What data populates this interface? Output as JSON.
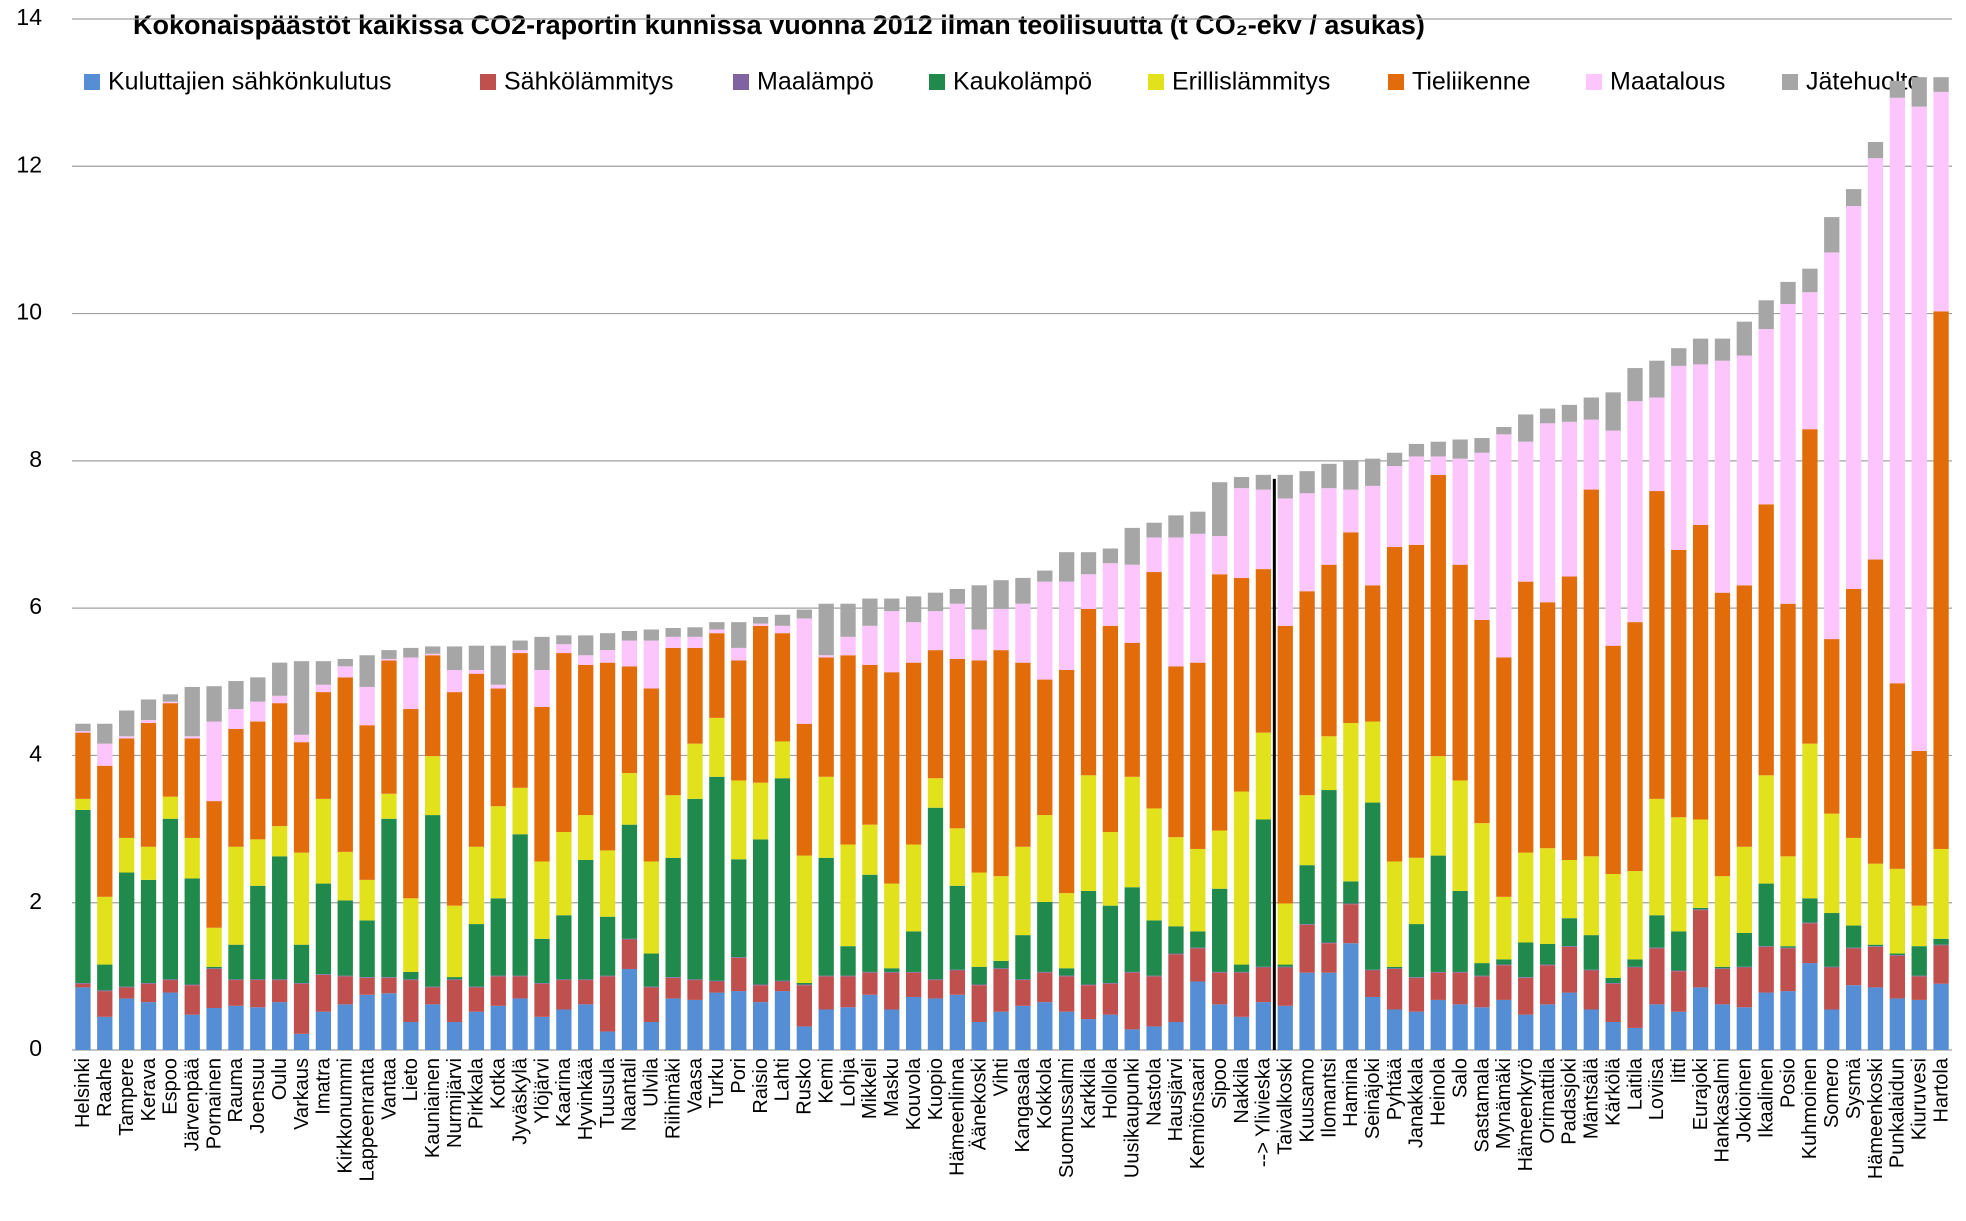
{
  "chart_data": {
    "type": "stacked-bar",
    "title": "Kokonaispäästöt kaikissa CO2-raportin kunnissa vuonna 2012 ilman teollisuutta (t CO₂-ekv / asukas)",
    "categories": [
      "Helsinki",
      "Raahe",
      "Tampere",
      "Kerava",
      "Espoo",
      "Järvenpää",
      "Pornainen",
      "Rauma",
      "Joensuu",
      "Oulu",
      "Varkaus",
      "Imatra",
      "Kirkkonummi",
      "Lappeenranta",
      "Vantaa",
      "Lieto",
      "Kauniainen",
      "Nurmijärvi",
      "Pirkkala",
      "Kotka",
      "Jyväskylä",
      "Ylöjärvi",
      "Kaarina",
      "Hyvinkää",
      "Tuusula",
      "Naantali",
      "Ulvila",
      "Riihimäki",
      "Vaasa",
      "Turku",
      "Pori",
      "Raisio",
      "Lahti",
      "Rusko",
      "Kemi",
      "Lohja",
      "Mikkeli",
      "Masku",
      "Kouvola",
      "Kuopio",
      "Hämeenlinna",
      "Äänekoski",
      "Vihti",
      "Kangasala",
      "Kokkola",
      "Suomussalmi",
      "Karkkila",
      "Hollola",
      "Uusikaupunki",
      "Nastola",
      "Hausjärvi",
      "Kemiönsaari",
      "Sipoo",
      "Nakkila",
      "--> Ylivieska",
      "Taivalkoski",
      "Kuusamo",
      "Ilomantsi",
      "Hamina",
      "Seinäjoki",
      "Pyhtää",
      "Janakkala",
      "Heinola",
      "Salo",
      "Sastamala",
      "Mynämäki",
      "Hämeenkyrö",
      "Orimattila",
      "Padasjoki",
      "Mäntsälä",
      "Kärkölä",
      "Laitila",
      "Loviisa",
      "Iitti",
      "Eurajoki",
      "Hankasalmi",
      "Jokioinen",
      "Ikaalinen",
      "Posio",
      "Kuhmoinen",
      "Somero",
      "Sysmä",
      "Hämeenkoski",
      "Punkalaidun",
      "Kiuruvesi",
      "Hartola"
    ],
    "series": [
      {
        "name": "Kuluttajien sähkönkulutus",
        "color": "#558ed5",
        "values": [
          0.85,
          0.45,
          0.7,
          0.65,
          0.78,
          0.48,
          0.57,
          0.6,
          0.58,
          0.65,
          0.22,
          0.52,
          0.62,
          0.75,
          0.77,
          0.38,
          0.62,
          0.38,
          0.52,
          0.6,
          0.7,
          0.45,
          0.55,
          0.62,
          0.25,
          1.1,
          0.38,
          0.7,
          0.68,
          0.78,
          0.8,
          0.65,
          0.8,
          0.32,
          0.55,
          0.58,
          0.75,
          0.55,
          0.72,
          0.7,
          0.75,
          0.38,
          0.52,
          0.6,
          0.65,
          0.52,
          0.42,
          0.48,
          0.28,
          0.32,
          0.38,
          0.93,
          0.62,
          0.45,
          0.65,
          0.6,
          1.05,
          1.05,
          1.45,
          0.72,
          0.55,
          0.52,
          0.68,
          0.62,
          0.58,
          0.68,
          0.48,
          0.62,
          0.78,
          0.55,
          0.38,
          0.3,
          0.62,
          0.52,
          0.85,
          0.62,
          0.58,
          0.78,
          0.8,
          1.18,
          0.55,
          0.88,
          0.85,
          0.7,
          0.68,
          0.9
        ]
      },
      {
        "name": "Sähkölämmitys",
        "color": "#c0504d",
        "values": [
          0.05,
          0.35,
          0.15,
          0.25,
          0.17,
          0.4,
          0.53,
          0.35,
          0.37,
          0.3,
          0.68,
          0.5,
          0.38,
          0.23,
          0.21,
          0.57,
          0.23,
          0.57,
          0.33,
          0.4,
          0.3,
          0.45,
          0.4,
          0.33,
          0.75,
          0.4,
          0.47,
          0.28,
          0.27,
          0.15,
          0.45,
          0.23,
          0.13,
          0.56,
          0.45,
          0.42,
          0.3,
          0.5,
          0.33,
          0.25,
          0.33,
          0.5,
          0.58,
          0.35,
          0.4,
          0.48,
          0.46,
          0.42,
          0.77,
          0.68,
          0.92,
          0.45,
          0.43,
          0.6,
          0.47,
          0.52,
          0.65,
          0.4,
          0.53,
          0.36,
          0.55,
          0.46,
          0.37,
          0.43,
          0.42,
          0.47,
          0.5,
          0.53,
          0.62,
          0.53,
          0.52,
          0.82,
          0.76,
          0.55,
          1.05,
          0.48,
          0.54,
          0.62,
          0.58,
          0.54,
          0.57,
          0.5,
          0.55,
          0.58,
          0.32,
          0.52
        ]
      },
      {
        "name": "Maalämpö",
        "color": "#8064a2",
        "values": [
          0.01,
          0.01,
          0.01,
          0.01,
          0.01,
          0.01,
          0.01,
          0.01,
          0.01,
          0.01,
          0.01,
          0.01,
          0.01,
          0.01,
          0.01,
          0.01,
          0.01,
          0.01,
          0.01,
          0.01,
          0.01,
          0.01,
          0.01,
          0.01,
          0.01,
          0.01,
          0.01,
          0.01,
          0.01,
          0.01,
          0.01,
          0.01,
          0.01,
          0.01,
          0.01,
          0.01,
          0.01,
          0.01,
          0.01,
          0.01,
          0.01,
          0.01,
          0.01,
          0.01,
          0.01,
          0.01,
          0.01,
          0.01,
          0.01,
          0.01,
          0.01,
          0.01,
          0.01,
          0.01,
          0.01,
          0.01,
          0.01,
          0.01,
          0.01,
          0.01,
          0.01,
          0.01,
          0.01,
          0.01,
          0.01,
          0.01,
          0.01,
          0.01,
          0.01,
          0.01,
          0.01,
          0.01,
          0.01,
          0.01,
          0.01,
          0.01,
          0.01,
          0.01,
          0.01,
          0.01,
          0.01,
          0.01,
          0.01,
          0.01,
          0.01,
          0.01
        ]
      },
      {
        "name": "Kaukolämpö",
        "color": "#1f8a4c",
        "values": [
          2.35,
          0.35,
          1.55,
          1.4,
          2.18,
          1.44,
          0.02,
          0.47,
          1.27,
          1.67,
          0.52,
          1.23,
          1.02,
          0.77,
          2.15,
          0.1,
          2.33,
          0.03,
          0.85,
          1.05,
          1.92,
          0.6,
          0.87,
          1.62,
          0.8,
          1.55,
          0.45,
          1.62,
          2.45,
          2.77,
          1.33,
          1.97,
          2.75,
          0.02,
          1.6,
          0.4,
          1.32,
          0.05,
          0.55,
          2.33,
          1.14,
          0.24,
          0.1,
          0.6,
          0.95,
          0.1,
          1.27,
          1.05,
          1.15,
          0.75,
          0.37,
          0.22,
          1.13,
          0.1,
          2.0,
          0.03,
          0.8,
          2.07,
          0.3,
          2.27,
          0.02,
          0.72,
          1.58,
          1.1,
          0.17,
          0.07,
          0.47,
          0.28,
          0.38,
          0.47,
          0.07,
          0.1,
          0.44,
          0.53,
          0.02,
          0.02,
          0.46,
          0.85,
          0.02,
          0.33,
          0.73,
          0.3,
          0.02,
          0.02,
          0.4,
          0.08
        ]
      },
      {
        "name": "Erillislämmitys",
        "color": "#e2e21c",
        "values": [
          0.15,
          0.92,
          0.47,
          0.45,
          0.3,
          0.55,
          0.53,
          1.33,
          0.63,
          0.41,
          1.25,
          1.15,
          0.66,
          0.55,
          0.34,
          1.0,
          0.8,
          0.97,
          1.05,
          1.25,
          0.63,
          1.05,
          1.13,
          0.61,
          0.9,
          0.7,
          1.25,
          0.85,
          0.75,
          0.8,
          1.07,
          0.77,
          0.5,
          1.73,
          1.1,
          1.38,
          0.68,
          1.15,
          1.18,
          0.4,
          0.78,
          1.28,
          1.15,
          1.2,
          1.18,
          1.02,
          1.57,
          1.0,
          1.5,
          1.52,
          1.21,
          1.12,
          0.79,
          2.35,
          1.18,
          0.83,
          0.95,
          0.73,
          2.15,
          1.1,
          1.43,
          0.9,
          1.35,
          1.5,
          1.9,
          0.85,
          1.22,
          1.3,
          0.79,
          1.07,
          1.41,
          1.2,
          1.58,
          1.55,
          1.2,
          1.23,
          1.17,
          1.47,
          1.22,
          2.1,
          1.35,
          1.19,
          1.1,
          1.15,
          0.55,
          1.22
        ]
      },
      {
        "name": "Tieliikenne",
        "color": "#e36c0a",
        "values": [
          0.9,
          1.78,
          1.35,
          1.68,
          1.27,
          1.35,
          1.72,
          1.6,
          1.6,
          1.67,
          1.5,
          1.45,
          2.37,
          2.1,
          1.81,
          2.57,
          1.37,
          2.9,
          2.35,
          1.6,
          1.83,
          2.1,
          2.43,
          2.04,
          2.55,
          1.45,
          2.35,
          2.0,
          1.3,
          1.15,
          1.63,
          2.13,
          1.47,
          1.79,
          1.62,
          2.57,
          2.17,
          2.87,
          2.47,
          1.74,
          2.3,
          2.88,
          3.07,
          2.5,
          1.84,
          3.03,
          2.26,
          2.8,
          1.82,
          3.21,
          2.32,
          2.53,
          3.48,
          2.9,
          2.22,
          3.77,
          2.77,
          2.33,
          2.59,
          1.85,
          4.27,
          4.25,
          3.82,
          2.93,
          2.76,
          3.25,
          3.68,
          3.34,
          3.85,
          4.98,
          3.1,
          3.38,
          4.18,
          3.63,
          4.0,
          3.85,
          3.55,
          3.68,
          3.43,
          4.27,
          2.37,
          3.38,
          4.13,
          2.52,
          2.1,
          7.3
        ]
      },
      {
        "name": "Maatalous",
        "color": "#fcc6fc",
        "values": [
          0.02,
          0.3,
          0.03,
          0.04,
          0.02,
          0.03,
          1.08,
          0.27,
          0.27,
          0.1,
          0.1,
          0.1,
          0.15,
          0.52,
          0.02,
          0.7,
          0.02,
          0.3,
          0.05,
          0.05,
          0.04,
          0.5,
          0.12,
          0.13,
          0.17,
          0.35,
          0.65,
          0.15,
          0.15,
          0.05,
          0.17,
          0.03,
          0.1,
          1.43,
          0.03,
          0.25,
          0.53,
          0.83,
          0.55,
          0.53,
          0.75,
          0.42,
          0.56,
          0.8,
          1.33,
          1.2,
          0.47,
          0.85,
          1.06,
          0.47,
          1.75,
          1.75,
          0.52,
          1.22,
          1.08,
          1.73,
          1.33,
          1.04,
          0.58,
          1.35,
          1.1,
          1.2,
          0.25,
          1.44,
          2.27,
          3.03,
          1.9,
          2.43,
          2.1,
          0.95,
          2.92,
          3.0,
          1.27,
          2.5,
          2.18,
          3.15,
          3.12,
          2.38,
          4.07,
          1.86,
          5.25,
          5.2,
          5.45,
          7.95,
          8.75,
          2.98
        ]
      },
      {
        "name": "Jätehuolto",
        "color": "#a6a6a6",
        "values": [
          0.1,
          0.27,
          0.35,
          0.28,
          0.1,
          0.67,
          0.48,
          0.38,
          0.33,
          0.45,
          1.0,
          0.32,
          0.1,
          0.43,
          0.12,
          0.13,
          0.1,
          0.32,
          0.33,
          0.53,
          0.13,
          0.45,
          0.12,
          0.27,
          0.23,
          0.13,
          0.15,
          0.12,
          0.13,
          0.1,
          0.35,
          0.09,
          0.15,
          0.12,
          0.7,
          0.45,
          0.37,
          0.17,
          0.35,
          0.25,
          0.2,
          0.6,
          0.39,
          0.35,
          0.15,
          0.4,
          0.3,
          0.2,
          0.5,
          0.2,
          0.3,
          0.3,
          0.73,
          0.15,
          0.2,
          0.32,
          0.3,
          0.33,
          0.4,
          0.37,
          0.18,
          0.17,
          0.2,
          0.26,
          0.2,
          0.1,
          0.37,
          0.2,
          0.23,
          0.3,
          0.52,
          0.45,
          0.5,
          0.24,
          0.35,
          0.3,
          0.46,
          0.39,
          0.3,
          0.32,
          0.48,
          0.23,
          0.22,
          0.23,
          0.4,
          0.2
        ]
      }
    ],
    "ylim": [
      0,
      14
    ],
    "yticks": [
      0,
      2,
      4,
      6,
      8,
      10,
      12,
      14
    ],
    "grid": true,
    "legend": "top"
  }
}
